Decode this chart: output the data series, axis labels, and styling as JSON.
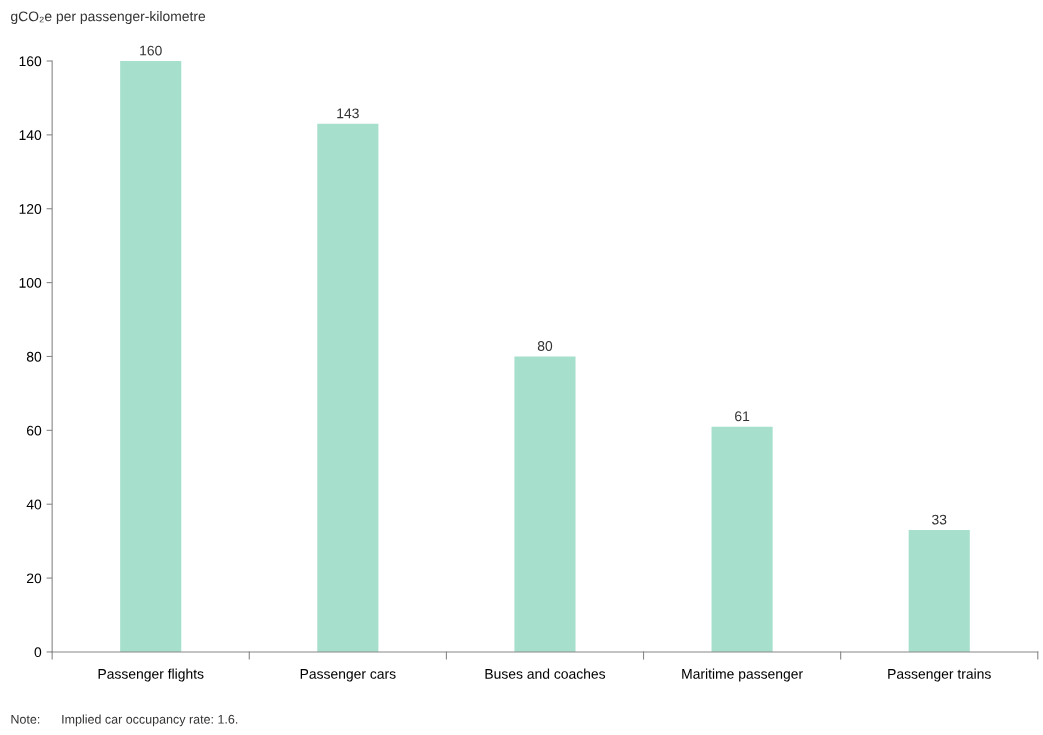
{
  "chart_data": {
    "type": "bar",
    "ylabel": "gCO₂e per passenger-kilometre",
    "categories": [
      "Passenger flights",
      "Passenger cars",
      "Buses and coaches",
      "Maritime passenger",
      "Passenger trains"
    ],
    "values": [
      160,
      143,
      80,
      61,
      33
    ],
    "color": "#a6dfcc",
    "ylim": [
      0,
      160
    ],
    "yticks": [
      0,
      20,
      40,
      60,
      80,
      100,
      120,
      140,
      160
    ],
    "data_labels": true,
    "grid": false,
    "legend": false,
    "annotations": [
      "Note:      Implied car occupancy rate: 1.6."
    ]
  }
}
